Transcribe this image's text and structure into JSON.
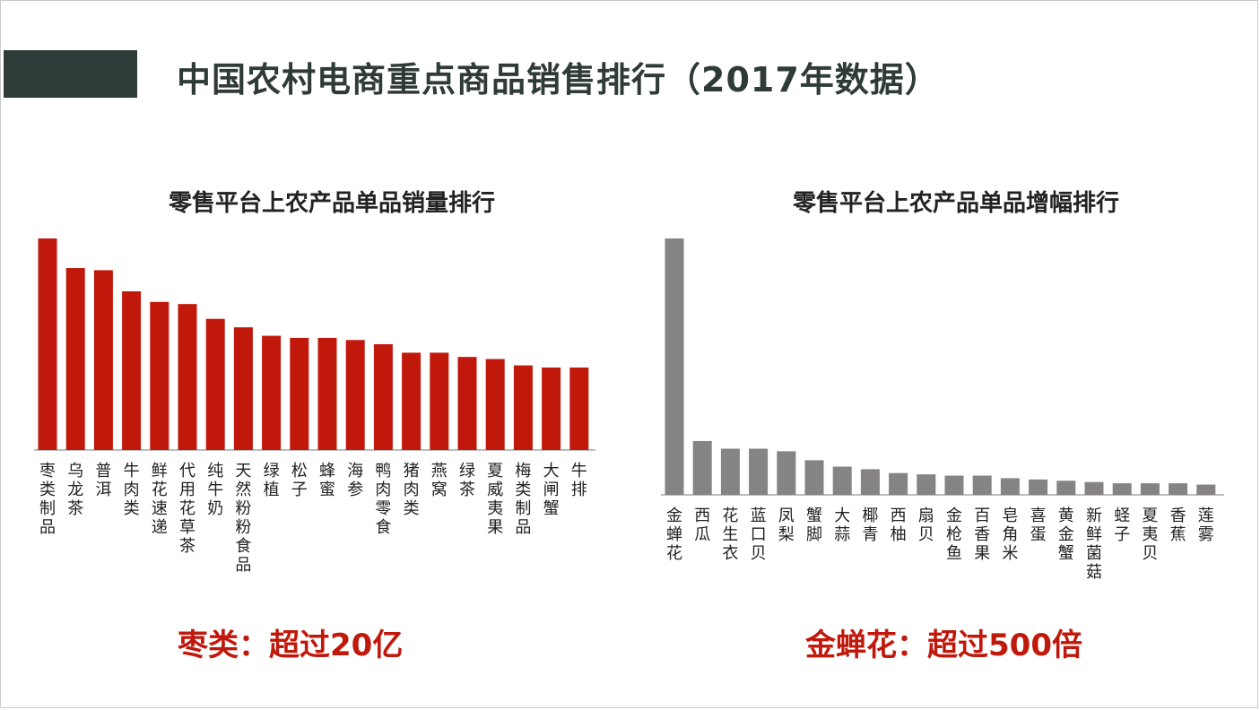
{
  "page": {
    "title": "中国农村电商重点商品销售排行（2017年数据）"
  },
  "colors": {
    "accent_bar": "#2f3b38",
    "title_text": "#2f3b38",
    "left_bars": "#c0180b",
    "right_bars": "#858384",
    "summary_text": "#c0180b"
  },
  "summaries": {
    "left": "枣类：超过20亿",
    "right": "金蝉花：超过500倍"
  },
  "chart_data": [
    {
      "type": "bar",
      "title": "零售平台上农产品单品销量排行",
      "categories": [
        "枣类制品",
        "乌龙茶",
        "普洱",
        "牛肉类",
        "鲜花速递",
        "代用花草茶",
        "纯牛奶",
        "天然粉粉食品",
        "绿植",
        "松子",
        "蜂蜜",
        "海参",
        "鸭肉零食",
        "猪肉类",
        "燕窝",
        "绿茶",
        "夏威夷果",
        "梅类制品",
        "大闸蟹",
        "牛排"
      ],
      "values": [
        100,
        86,
        85,
        75,
        70,
        69,
        62,
        58,
        54,
        53,
        53,
        52,
        50,
        46,
        46,
        44,
        43,
        40,
        39,
        39
      ],
      "ylim": [
        0,
        100
      ],
      "xlabel": "",
      "ylabel": "",
      "grid": false,
      "legend": "none",
      "color": "#c0180b"
    },
    {
      "type": "bar",
      "title": "零售平台上农产品单品增幅排行",
      "categories": [
        "金蝉花",
        "西瓜",
        "花生衣",
        "蓝口贝",
        "凤梨",
        "蟹脚",
        "大蒜",
        "椰青",
        "西柚",
        "扇贝",
        "金枪鱼",
        "百香果",
        "皂角米",
        "喜蛋",
        "黄金蟹",
        "新鲜菌菇",
        "蛏子",
        "夏夷贝",
        "香蕉",
        "莲雾"
      ],
      "values": [
        100,
        21,
        18,
        18,
        17,
        13.5,
        11,
        10,
        8.5,
        8,
        7.5,
        7.5,
        6.5,
        6,
        5.5,
        5,
        4.5,
        4.5,
        4.5,
        4
      ],
      "ylim": [
        0,
        100
      ],
      "xlabel": "",
      "ylabel": "",
      "grid": false,
      "legend": "none",
      "color": "#858384"
    }
  ]
}
